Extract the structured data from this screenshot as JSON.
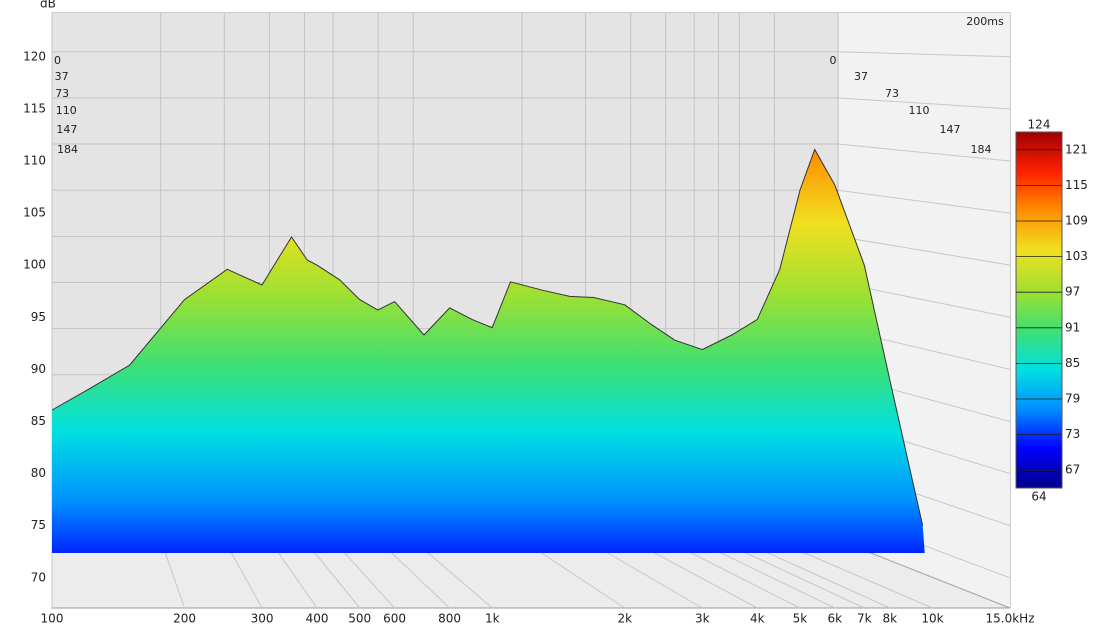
{
  "chart_data": {
    "type": "waterfall",
    "y_label": "dB",
    "time_span": "200ms",
    "x": [
      100,
      120,
      150,
      200,
      250,
      300,
      350,
      380,
      400,
      450,
      500,
      550,
      600,
      700,
      800,
      900,
      1000,
      1100,
      1300,
      1500,
      1700,
      2000,
      2300,
      2600,
      3000,
      3500,
      4000,
      4500,
      5000,
      5400,
      6000,
      7000,
      8000,
      9000,
      9500
    ],
    "values": [
      86.1,
      88,
      90.4,
      96.7,
      99.6,
      98.1,
      102.7,
      100.5,
      100,
      98.6,
      96.7,
      95.7,
      96.5,
      93.3,
      95.9,
      94.8,
      94,
      98.4,
      97.6,
      97,
      96.9,
      96.2,
      94.3,
      92.8,
      91.9,
      93.3,
      94.8,
      99.6,
      107.2,
      111.1,
      107.7,
      100,
      89,
      79.4,
      75
    ],
    "xlim": [
      100,
      15000
    ],
    "xticks": [
      100,
      200,
      300,
      400,
      500,
      600,
      800,
      {
        "value": 1000,
        "label": "1k"
      },
      {
        "value": 2000,
        "label": "2k"
      },
      {
        "value": 3000,
        "label": "3k"
      },
      {
        "value": 4000,
        "label": "4k"
      },
      {
        "value": 5000,
        "label": "5k"
      },
      {
        "value": 6000,
        "label": "6k"
      },
      {
        "value": 7000,
        "label": "7k"
      },
      {
        "value": 8000,
        "label": "8k"
      },
      {
        "value": 10000,
        "label": "10k"
      },
      {
        "value": 15000,
        "label": "15.0kHz"
      }
    ],
    "x_log": true,
    "ylim": [
      67.1,
      124.2
    ],
    "yticks": [
      70,
      75,
      80,
      85,
      90,
      95,
      100,
      105,
      110,
      115,
      120
    ],
    "zticks": [
      0,
      37,
      73,
      110,
      147,
      184
    ],
    "colorbar": {
      "lim": [
        64,
        124
      ],
      "ticks": [
        67,
        73,
        79,
        85,
        91,
        97,
        103,
        109,
        115,
        121
      ],
      "colormap": [
        "#00008a",
        "#0000ff",
        "#0090ff",
        "#00e0e0",
        "#40e070",
        "#a0e030",
        "#f0e020",
        "#ff9000",
        "#ff2000",
        "#a00000"
      ]
    },
    "grid": true
  }
}
